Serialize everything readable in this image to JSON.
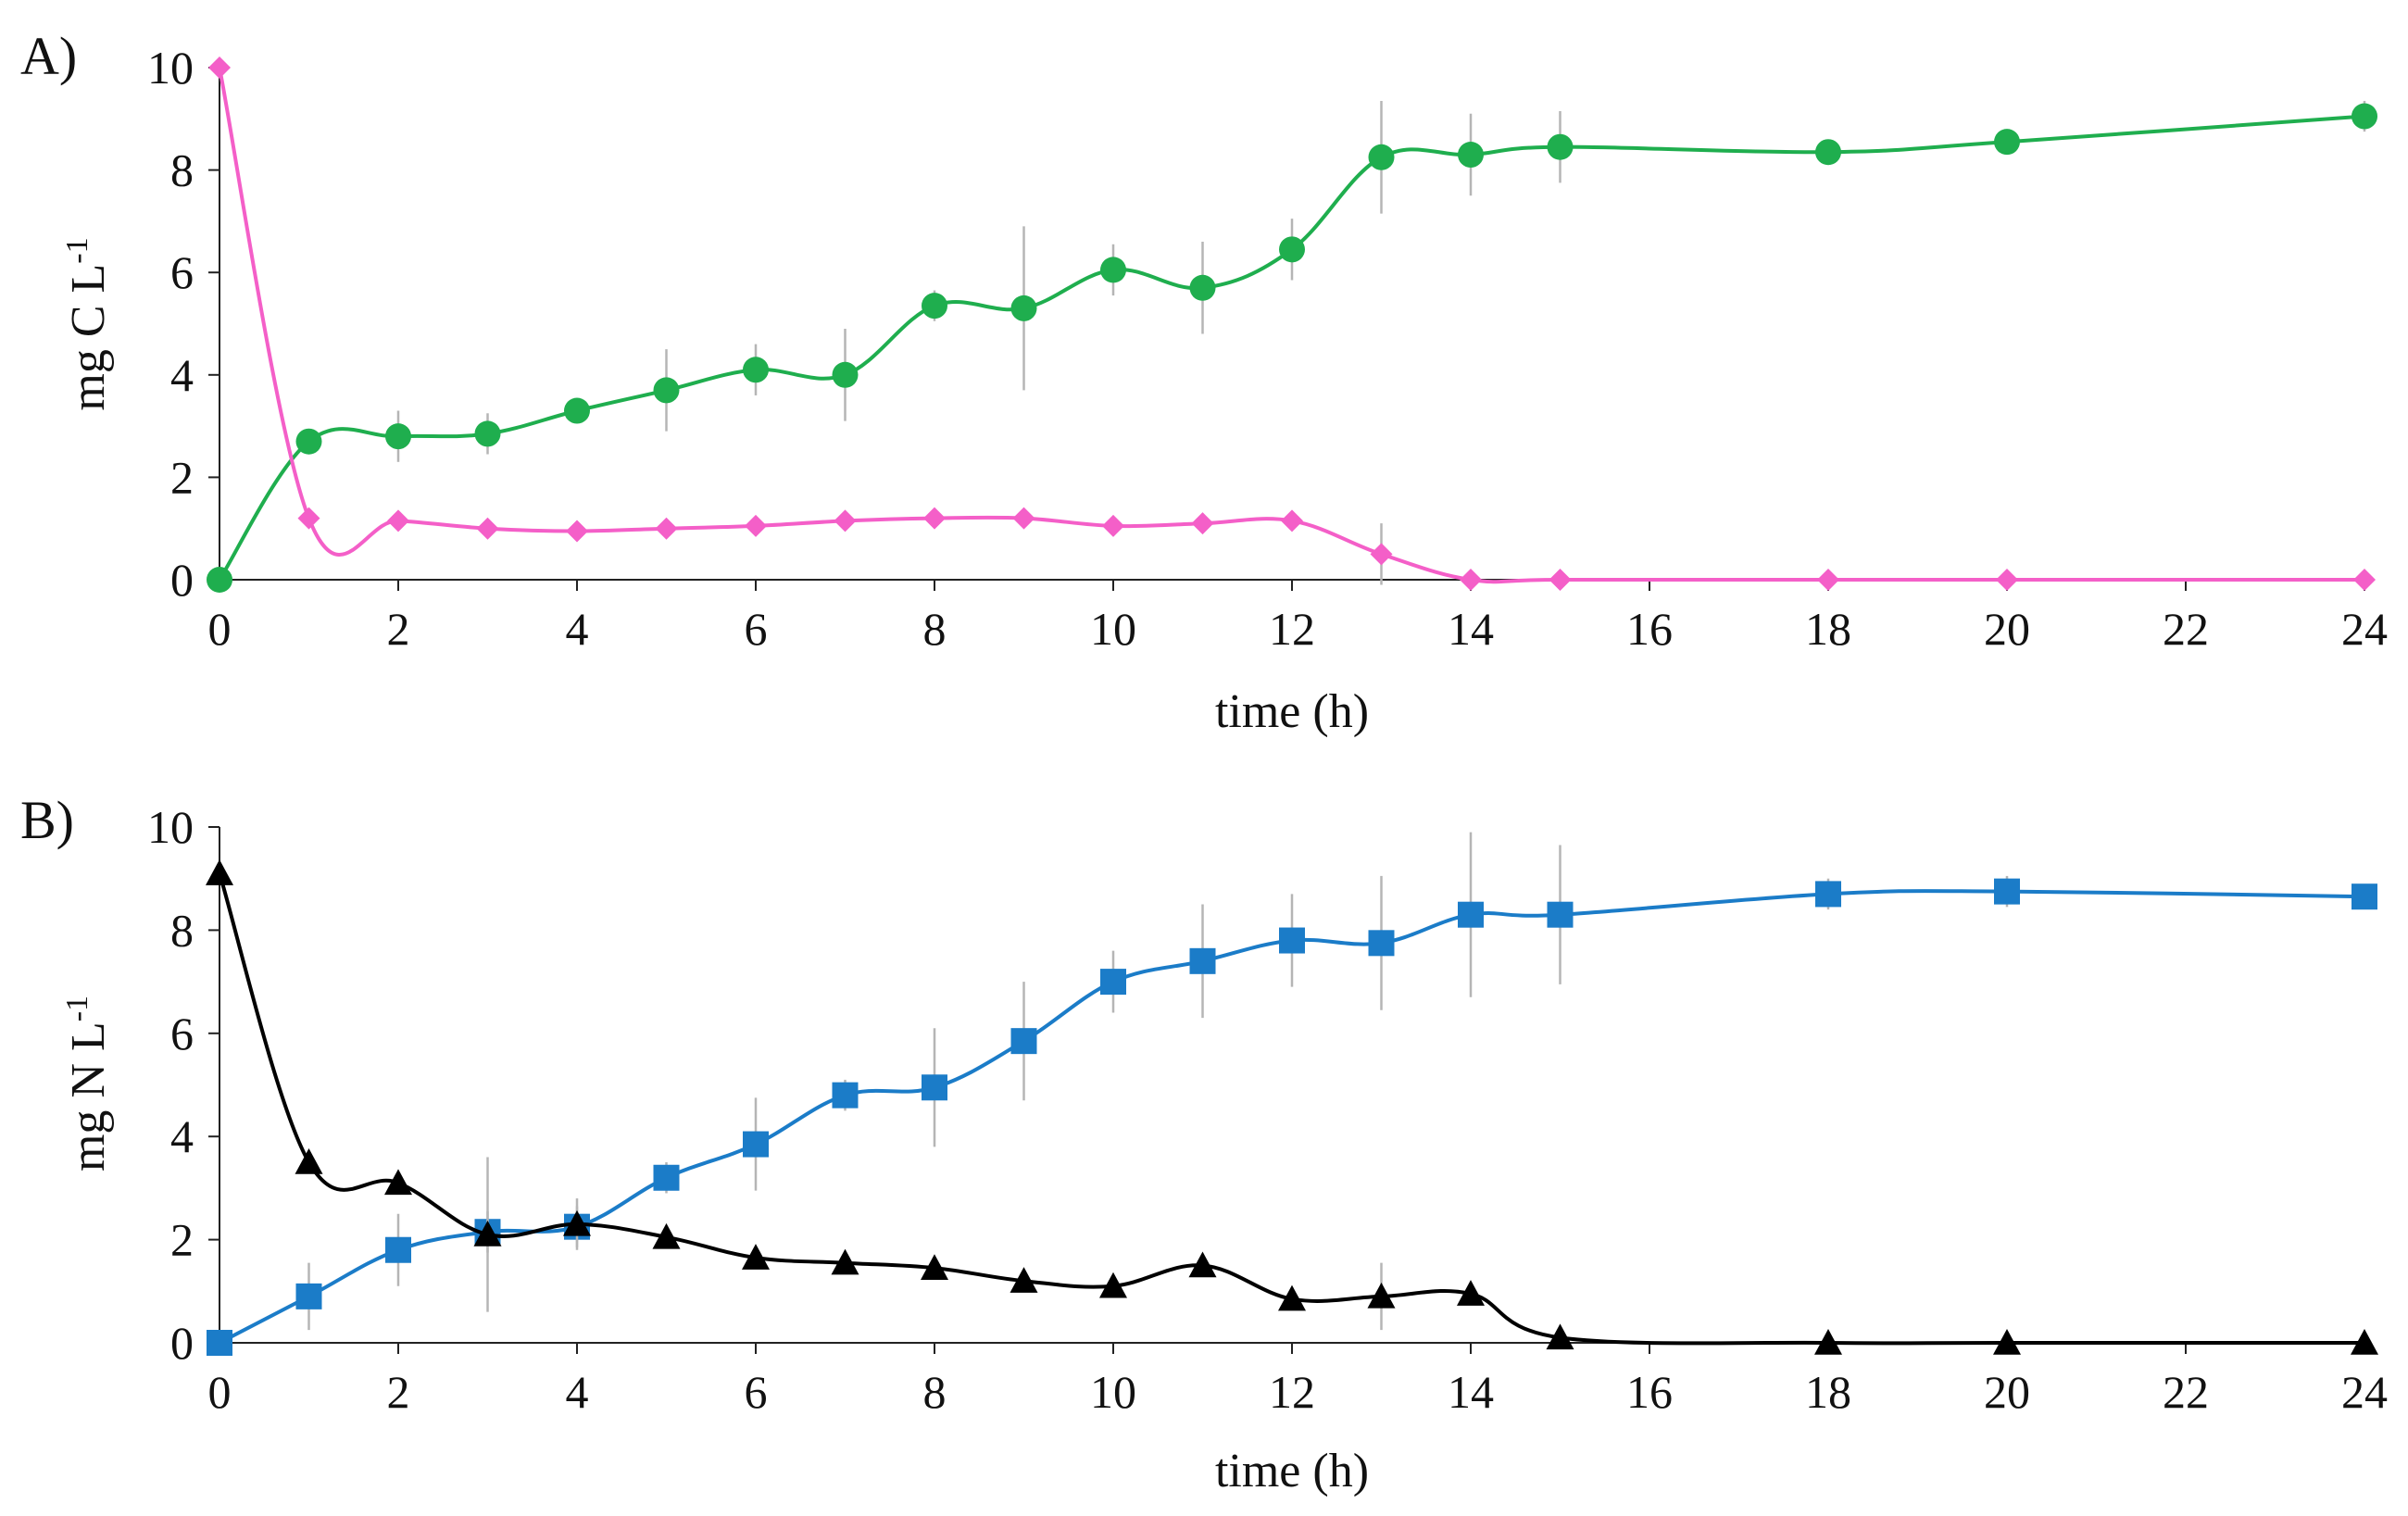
{
  "chart_data": [
    {
      "panel_label": "A)",
      "type": "line",
      "title": "",
      "xlabel": "time (h)",
      "ylabel": "mg C L",
      "ylabel_superscript": "-1",
      "xlim": [
        0,
        24
      ],
      "ylim": [
        0,
        10
      ],
      "xticks": [
        "0",
        "2",
        "4",
        "6",
        "8",
        "10",
        "12",
        "14",
        "16",
        "18",
        "20",
        "22",
        "24"
      ],
      "yticks": [
        "0",
        "2",
        "4",
        "6",
        "8",
        "10"
      ],
      "series": [
        {
          "name": "green series",
          "color": "#1fae4e",
          "marker": "circle",
          "x": [
            0,
            1,
            2,
            3,
            4,
            5,
            6,
            7,
            8,
            9,
            10,
            11,
            12,
            13,
            14,
            15,
            18,
            20,
            24
          ],
          "y": [
            0,
            2.7,
            2.8,
            2.85,
            3.3,
            3.7,
            4.1,
            4.0,
            5.35,
            5.3,
            6.05,
            5.7,
            6.45,
            8.25,
            8.3,
            8.45,
            8.35,
            8.55,
            9.05
          ],
          "err": [
            0,
            0.2,
            0.5,
            0.4,
            0.2,
            0.8,
            0.5,
            0.9,
            0.3,
            1.6,
            0.5,
            0.9,
            0.6,
            1.1,
            0.8,
            0.7,
            0.2,
            0.2,
            0.3
          ]
        },
        {
          "name": "pink series",
          "color": "#f45fc8",
          "marker": "diamond",
          "x": [
            0,
            1,
            2,
            3,
            4,
            5,
            6,
            7,
            8,
            9,
            10,
            11,
            12,
            13,
            14,
            15,
            18,
            20,
            24
          ],
          "y": [
            10,
            1.2,
            1.15,
            1.0,
            0.95,
            1.0,
            1.05,
            1.15,
            1.2,
            1.2,
            1.05,
            1.1,
            1.15,
            0.5,
            0,
            0,
            0,
            0,
            0
          ],
          "err": [
            0,
            0.1,
            0.1,
            0.1,
            0.1,
            0.1,
            0.15,
            0.15,
            0.1,
            0.1,
            0.1,
            0.15,
            0.1,
            0.6,
            0,
            0,
            0,
            0,
            0
          ]
        }
      ]
    },
    {
      "panel_label": "B)",
      "type": "line",
      "title": "",
      "xlabel": "time (h)",
      "ylabel": "mg N L",
      "ylabel_superscript": "-1",
      "xlim": [
        0,
        24
      ],
      "ylim": [
        0,
        10
      ],
      "xticks": [
        "0",
        "2",
        "4",
        "6",
        "8",
        "10",
        "12",
        "14",
        "16",
        "18",
        "20",
        "22",
        "24"
      ],
      "yticks": [
        "0",
        "2",
        "4",
        "6",
        "8",
        "10"
      ],
      "series": [
        {
          "name": "blue series",
          "color": "#1b7cc8",
          "marker": "square",
          "x": [
            0,
            1,
            2,
            3,
            4,
            5,
            6,
            7,
            8,
            9,
            10,
            11,
            12,
            13,
            14,
            15,
            18,
            20,
            24
          ],
          "y": [
            0,
            0.9,
            1.8,
            2.15,
            2.25,
            3.2,
            3.85,
            4.8,
            4.95,
            5.85,
            7.0,
            7.4,
            7.8,
            7.75,
            8.3,
            8.3,
            8.7,
            8.75,
            8.65
          ],
          "err": [
            0,
            0.65,
            0.7,
            0.4,
            0.4,
            0.3,
            0.9,
            0.3,
            1.15,
            1.15,
            0.6,
            1.1,
            0.9,
            1.3,
            1.6,
            1.35,
            0.3,
            0.3,
            0.2
          ]
        },
        {
          "name": "black series",
          "color": "#000000",
          "marker": "triangle",
          "x": [
            0,
            1,
            2,
            3,
            4,
            5,
            6,
            7,
            8,
            9,
            10,
            11,
            12,
            13,
            14,
            15,
            18,
            20,
            24
          ],
          "y": [
            9.1,
            3.5,
            3.1,
            2.1,
            2.3,
            2.05,
            1.65,
            1.55,
            1.45,
            1.2,
            1.1,
            1.5,
            0.85,
            0.9,
            0.95,
            0.1,
            0,
            0,
            0
          ],
          "err": [
            0,
            0.1,
            0.1,
            1.5,
            0.5,
            0.2,
            0.2,
            0.15,
            0.2,
            0.15,
            0.1,
            0.2,
            0.2,
            0.65,
            0.2,
            0.05,
            0,
            0,
            0
          ]
        }
      ]
    }
  ]
}
